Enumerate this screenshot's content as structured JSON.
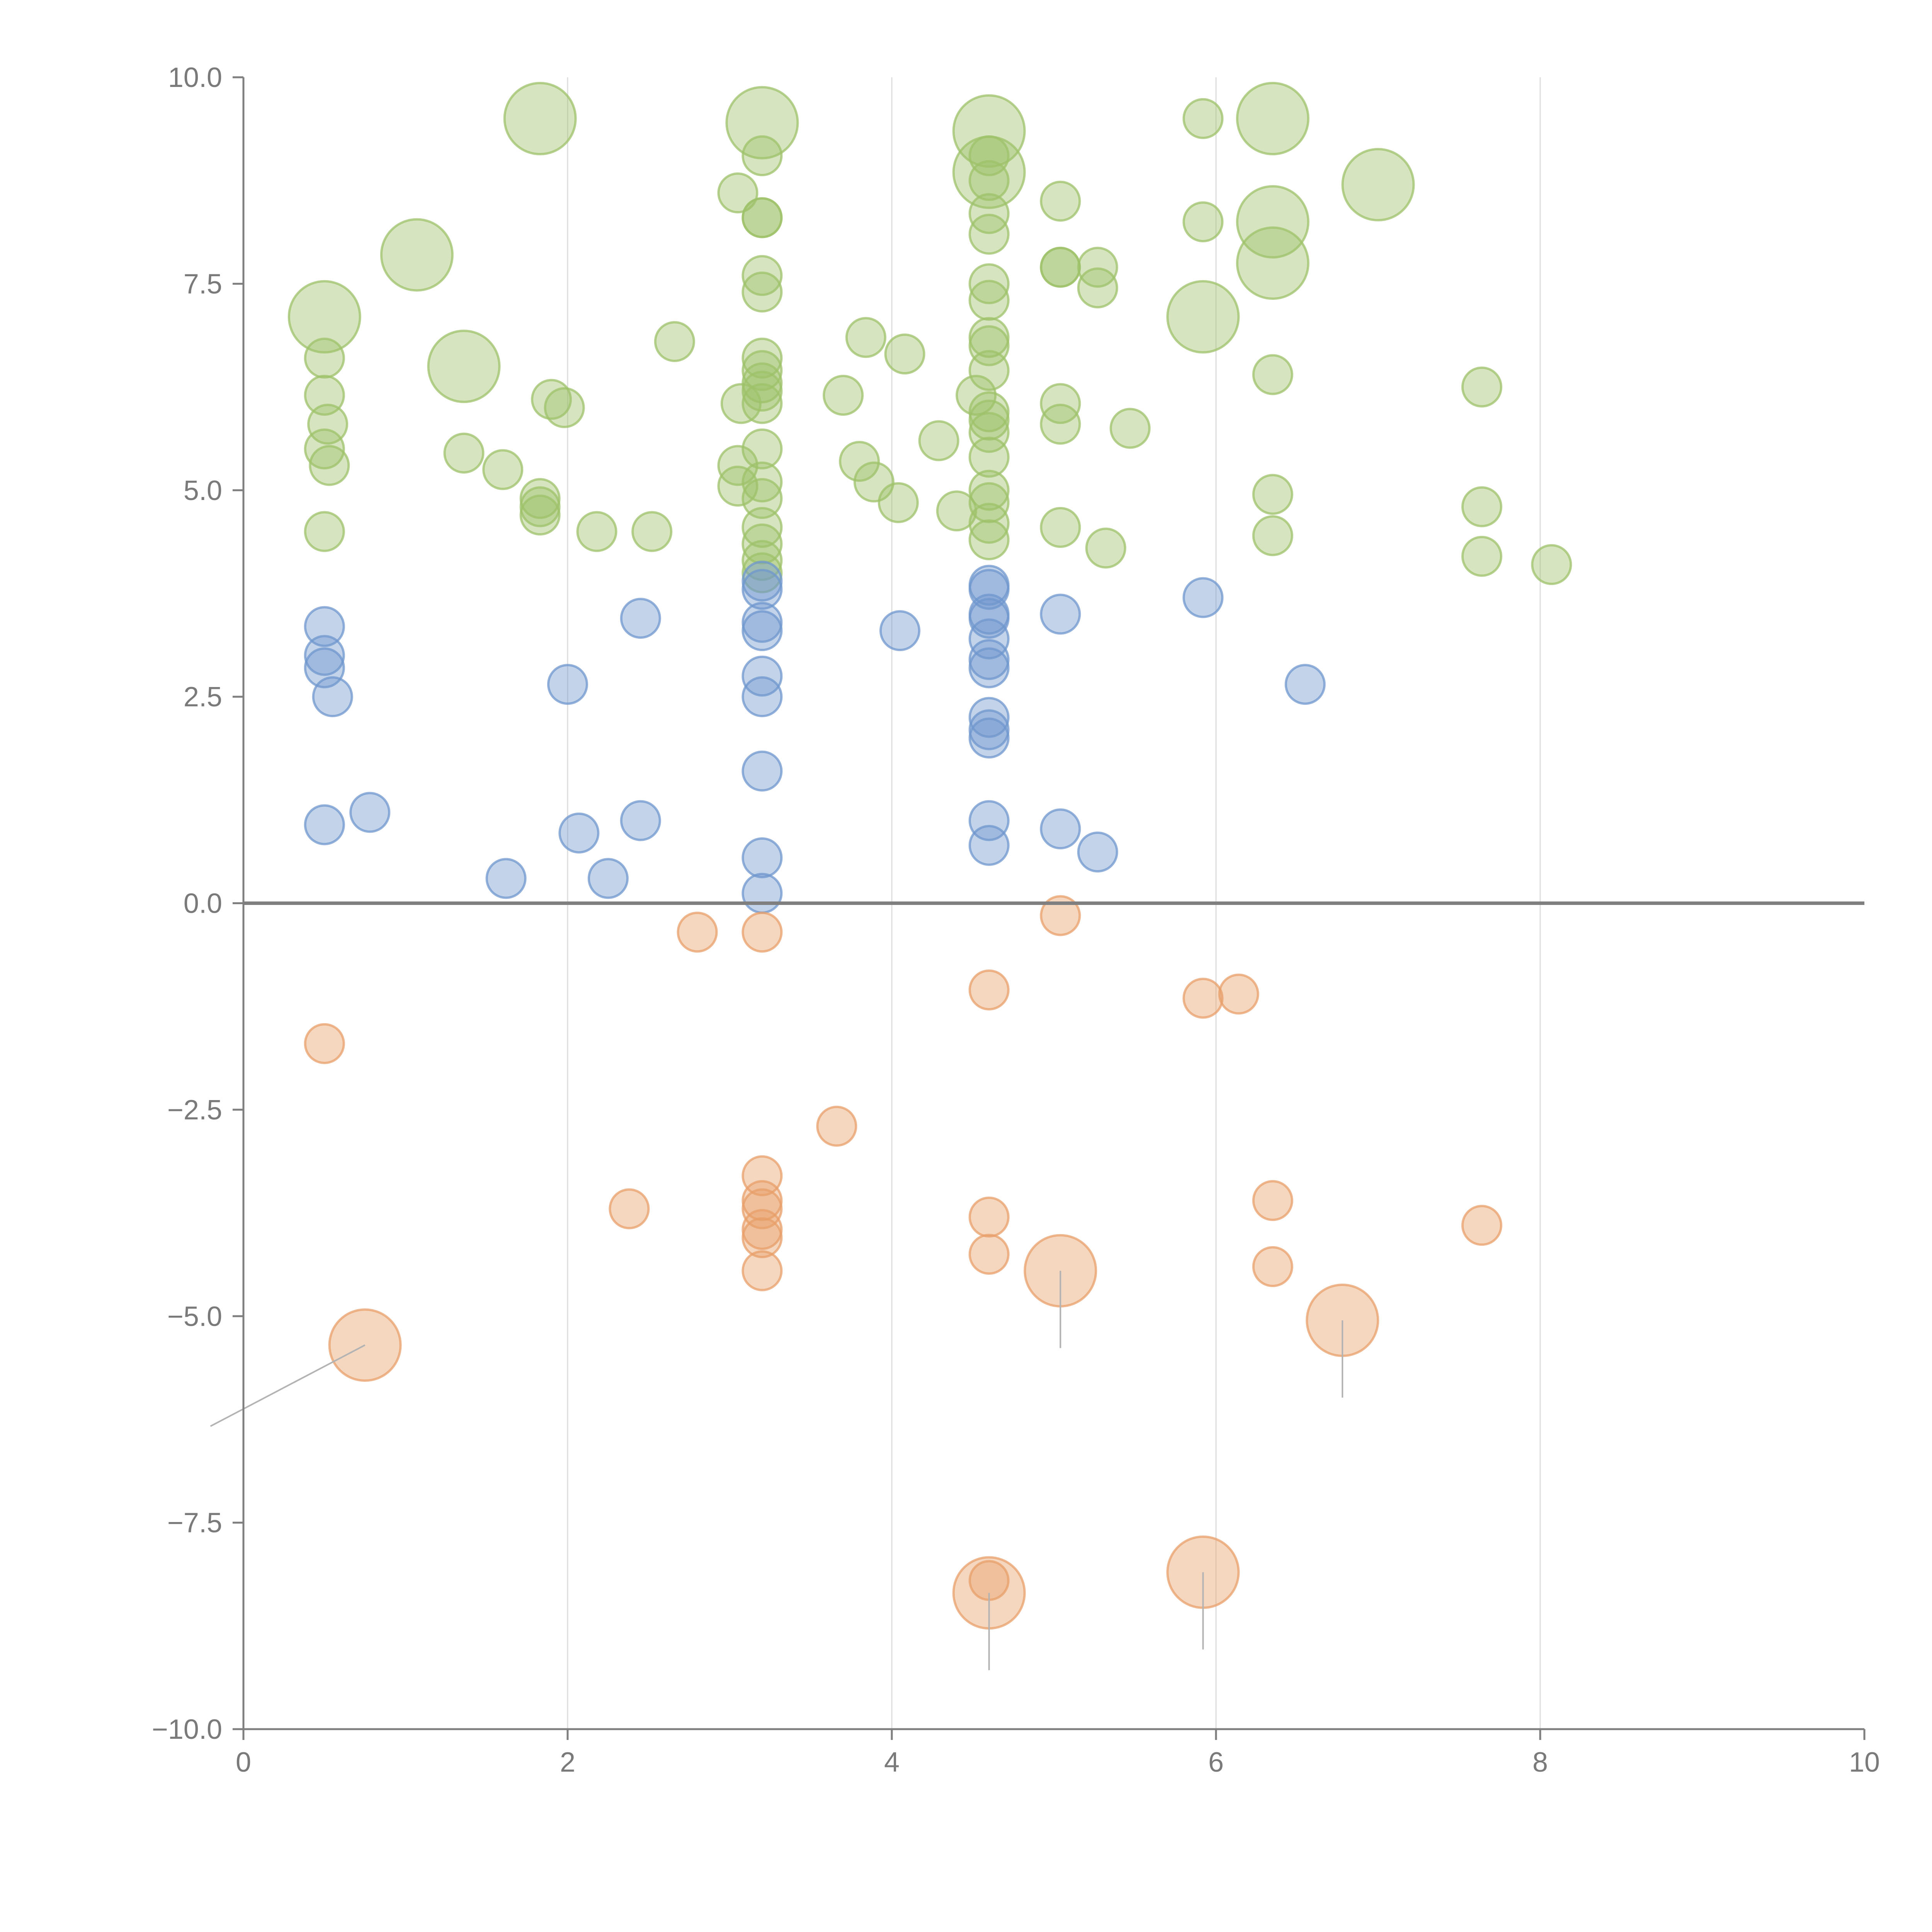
{
  "chart_data": {
    "type": "scatter",
    "title": "",
    "xlabel": "",
    "ylabel": "",
    "xlim": [
      0,
      10
    ],
    "ylim": [
      -10,
      10
    ],
    "xticks": [
      "0",
      "2",
      "4",
      "6",
      "8",
      "10"
    ],
    "yticks": [
      "10.0",
      "7.5",
      "5.0",
      "2.5",
      "0.0",
      "−2.5",
      "−5.0",
      "−7.5",
      "−10.0"
    ],
    "grid": "vertical",
    "zero_line": true,
    "series": [
      {
        "name": "green",
        "color": "#9dc16a",
        "points": [
          [
            1.83,
            9.5,
            2
          ],
          [
            3.2,
            9.45,
            2
          ],
          [
            4.6,
            9.35,
            2
          ],
          [
            6.35,
            9.5,
            2
          ],
          [
            1.07,
            7.85,
            2
          ],
          [
            7.0,
            8.7,
            2
          ],
          [
            6.35,
            8.25,
            2
          ],
          [
            6.35,
            7.75,
            2
          ],
          [
            4.6,
            8.85,
            2
          ],
          [
            0.5,
            7.1,
            2
          ],
          [
            1.36,
            6.5,
            2
          ],
          [
            5.92,
            7.1,
            2
          ],
          [
            5.92,
            9.5,
            1
          ],
          [
            3.2,
            9.05,
            1
          ],
          [
            3.05,
            8.6,
            1
          ],
          [
            3.2,
            8.3,
            1
          ],
          [
            3.2,
            8.3,
            1
          ],
          [
            5.04,
            8.5,
            1
          ],
          [
            5.92,
            8.25,
            1
          ],
          [
            3.2,
            7.6,
            1
          ],
          [
            3.2,
            7.4,
            1
          ],
          [
            5.04,
            7.7,
            1
          ],
          [
            5.04,
            7.7,
            1
          ],
          [
            5.27,
            7.7,
            1
          ],
          [
            5.27,
            7.45,
            1
          ],
          [
            0.5,
            6.6,
            1
          ],
          [
            0.5,
            6.15,
            1
          ],
          [
            0.52,
            5.8,
            1
          ],
          [
            0.5,
            5.5,
            1
          ],
          [
            0.53,
            5.3,
            1
          ],
          [
            0.5,
            4.5,
            1
          ],
          [
            1.9,
            6.1,
            1
          ],
          [
            1.98,
            6.0,
            1
          ],
          [
            1.36,
            5.45,
            1
          ],
          [
            1.6,
            5.25,
            1
          ],
          [
            1.83,
            4.9,
            1
          ],
          [
            1.83,
            4.8,
            1
          ],
          [
            1.83,
            4.7,
            1
          ],
          [
            2.18,
            4.5,
            1
          ],
          [
            2.52,
            4.5,
            1
          ],
          [
            2.66,
            6.8,
            1
          ],
          [
            3.2,
            6.6,
            1
          ],
          [
            3.2,
            6.45,
            1
          ],
          [
            3.2,
            6.3,
            1
          ],
          [
            3.2,
            6.2,
            1
          ],
          [
            3.2,
            6.05,
            1
          ],
          [
            3.07,
            6.05,
            1
          ],
          [
            3.2,
            5.5,
            1
          ],
          [
            3.05,
            5.3,
            1
          ],
          [
            3.05,
            5.05,
            1
          ],
          [
            3.2,
            5.1,
            1
          ],
          [
            3.2,
            4.9,
            1
          ],
          [
            3.2,
            4.55,
            1
          ],
          [
            3.2,
            4.35,
            1
          ],
          [
            3.2,
            4.15,
            1
          ],
          [
            3.2,
            4.0,
            1
          ],
          [
            3.7,
            6.15,
            1
          ],
          [
            3.84,
            6.85,
            1
          ],
          [
            4.08,
            6.65,
            1
          ],
          [
            3.8,
            5.35,
            1
          ],
          [
            3.89,
            5.1,
            1
          ],
          [
            4.04,
            4.85,
            1
          ],
          [
            4.29,
            5.6,
            1
          ],
          [
            4.4,
            4.75,
            1
          ],
          [
            4.6,
            9.05,
            1
          ],
          [
            4.6,
            8.75,
            1
          ],
          [
            4.6,
            8.35,
            1
          ],
          [
            4.6,
            8.1,
            1
          ],
          [
            4.6,
            7.5,
            1
          ],
          [
            4.6,
            7.3,
            1
          ],
          [
            4.6,
            6.85,
            1
          ],
          [
            4.6,
            6.75,
            1
          ],
          [
            4.6,
            6.45,
            1
          ],
          [
            4.52,
            6.15,
            1
          ],
          [
            4.6,
            5.95,
            1
          ],
          [
            4.6,
            5.85,
            1
          ],
          [
            4.6,
            5.7,
            1
          ],
          [
            4.6,
            5.4,
            1
          ],
          [
            4.6,
            5.0,
            1
          ],
          [
            4.6,
            4.85,
            1
          ],
          [
            4.6,
            4.6,
            1
          ],
          [
            4.6,
            4.4,
            1
          ],
          [
            5.04,
            6.05,
            1
          ],
          [
            5.04,
            5.8,
            1
          ],
          [
            5.47,
            5.75,
            1
          ],
          [
            5.04,
            4.55,
            1
          ],
          [
            5.32,
            4.3,
            1
          ],
          [
            6.35,
            6.4,
            1
          ],
          [
            6.35,
            4.95,
            1
          ],
          [
            6.35,
            4.45,
            1
          ],
          [
            7.64,
            6.25,
            1
          ],
          [
            7.64,
            4.8,
            1
          ],
          [
            7.64,
            4.2,
            1
          ],
          [
            8.07,
            4.1,
            1
          ]
        ]
      },
      {
        "name": "blue",
        "color": "#6f97cd",
        "points": [
          [
            0.5,
            3.35,
            1
          ],
          [
            0.5,
            3.0,
            1
          ],
          [
            0.5,
            2.85,
            1
          ],
          [
            0.55,
            2.5,
            1
          ],
          [
            0.5,
            0.95,
            1
          ],
          [
            0.78,
            1.1,
            1
          ],
          [
            1.62,
            0.3,
            1
          ],
          [
            2.0,
            2.65,
            1
          ],
          [
            2.07,
            0.85,
            1
          ],
          [
            2.25,
            0.3,
            1
          ],
          [
            2.45,
            3.45,
            1
          ],
          [
            2.45,
            1.0,
            1
          ],
          [
            3.2,
            3.9,
            1
          ],
          [
            3.2,
            3.8,
            1
          ],
          [
            3.2,
            3.4,
            1
          ],
          [
            3.2,
            3.3,
            1
          ],
          [
            3.2,
            2.75,
            1
          ],
          [
            3.2,
            2.5,
            1
          ],
          [
            3.2,
            1.6,
            1
          ],
          [
            3.2,
            0.55,
            1
          ],
          [
            3.2,
            0.12,
            1
          ],
          [
            4.05,
            3.3,
            1
          ],
          [
            4.6,
            3.85,
            1
          ],
          [
            4.6,
            3.8,
            1
          ],
          [
            4.6,
            3.5,
            1
          ],
          [
            4.6,
            3.45,
            1
          ],
          [
            4.6,
            3.2,
            1
          ],
          [
            4.6,
            2.95,
            1
          ],
          [
            4.6,
            2.85,
            1
          ],
          [
            4.6,
            2.25,
            1
          ],
          [
            4.6,
            2.1,
            1
          ],
          [
            4.6,
            2.0,
            1
          ],
          [
            4.6,
            1.0,
            1
          ],
          [
            4.6,
            0.7,
            1
          ],
          [
            5.04,
            3.5,
            1
          ],
          [
            5.04,
            0.9,
            1
          ],
          [
            5.27,
            0.62,
            1
          ],
          [
            5.92,
            3.7,
            1
          ],
          [
            6.55,
            2.65,
            1
          ]
        ]
      },
      {
        "name": "orange",
        "color": "#e89f69",
        "points": [
          [
            0.5,
            -1.7,
            1
          ],
          [
            0.75,
            -5.35,
            2
          ],
          [
            2.38,
            -3.7,
            1
          ],
          [
            2.8,
            -0.35,
            1
          ],
          [
            3.2,
            -0.35,
            1
          ],
          [
            3.2,
            -3.3,
            1
          ],
          [
            3.2,
            -3.6,
            1
          ],
          [
            3.2,
            -3.7,
            1
          ],
          [
            3.2,
            -3.95,
            1
          ],
          [
            3.2,
            -4.05,
            1
          ],
          [
            3.2,
            -4.45,
            1
          ],
          [
            3.66,
            -2.7,
            1
          ],
          [
            4.6,
            -1.05,
            1
          ],
          [
            4.6,
            -3.8,
            1
          ],
          [
            4.6,
            -4.25,
            1
          ],
          [
            4.6,
            -8.35,
            2
          ],
          [
            4.6,
            -8.2,
            1
          ],
          [
            5.04,
            -0.15,
            1
          ],
          [
            5.04,
            -4.45,
            2
          ],
          [
            5.92,
            -1.15,
            1
          ],
          [
            5.92,
            -8.1,
            2
          ],
          [
            6.14,
            -1.1,
            1
          ],
          [
            6.35,
            -3.6,
            1
          ],
          [
            6.35,
            -4.4,
            1
          ],
          [
            6.78,
            -5.05,
            2
          ],
          [
            7.64,
            -3.9,
            1
          ]
        ]
      }
    ]
  }
}
